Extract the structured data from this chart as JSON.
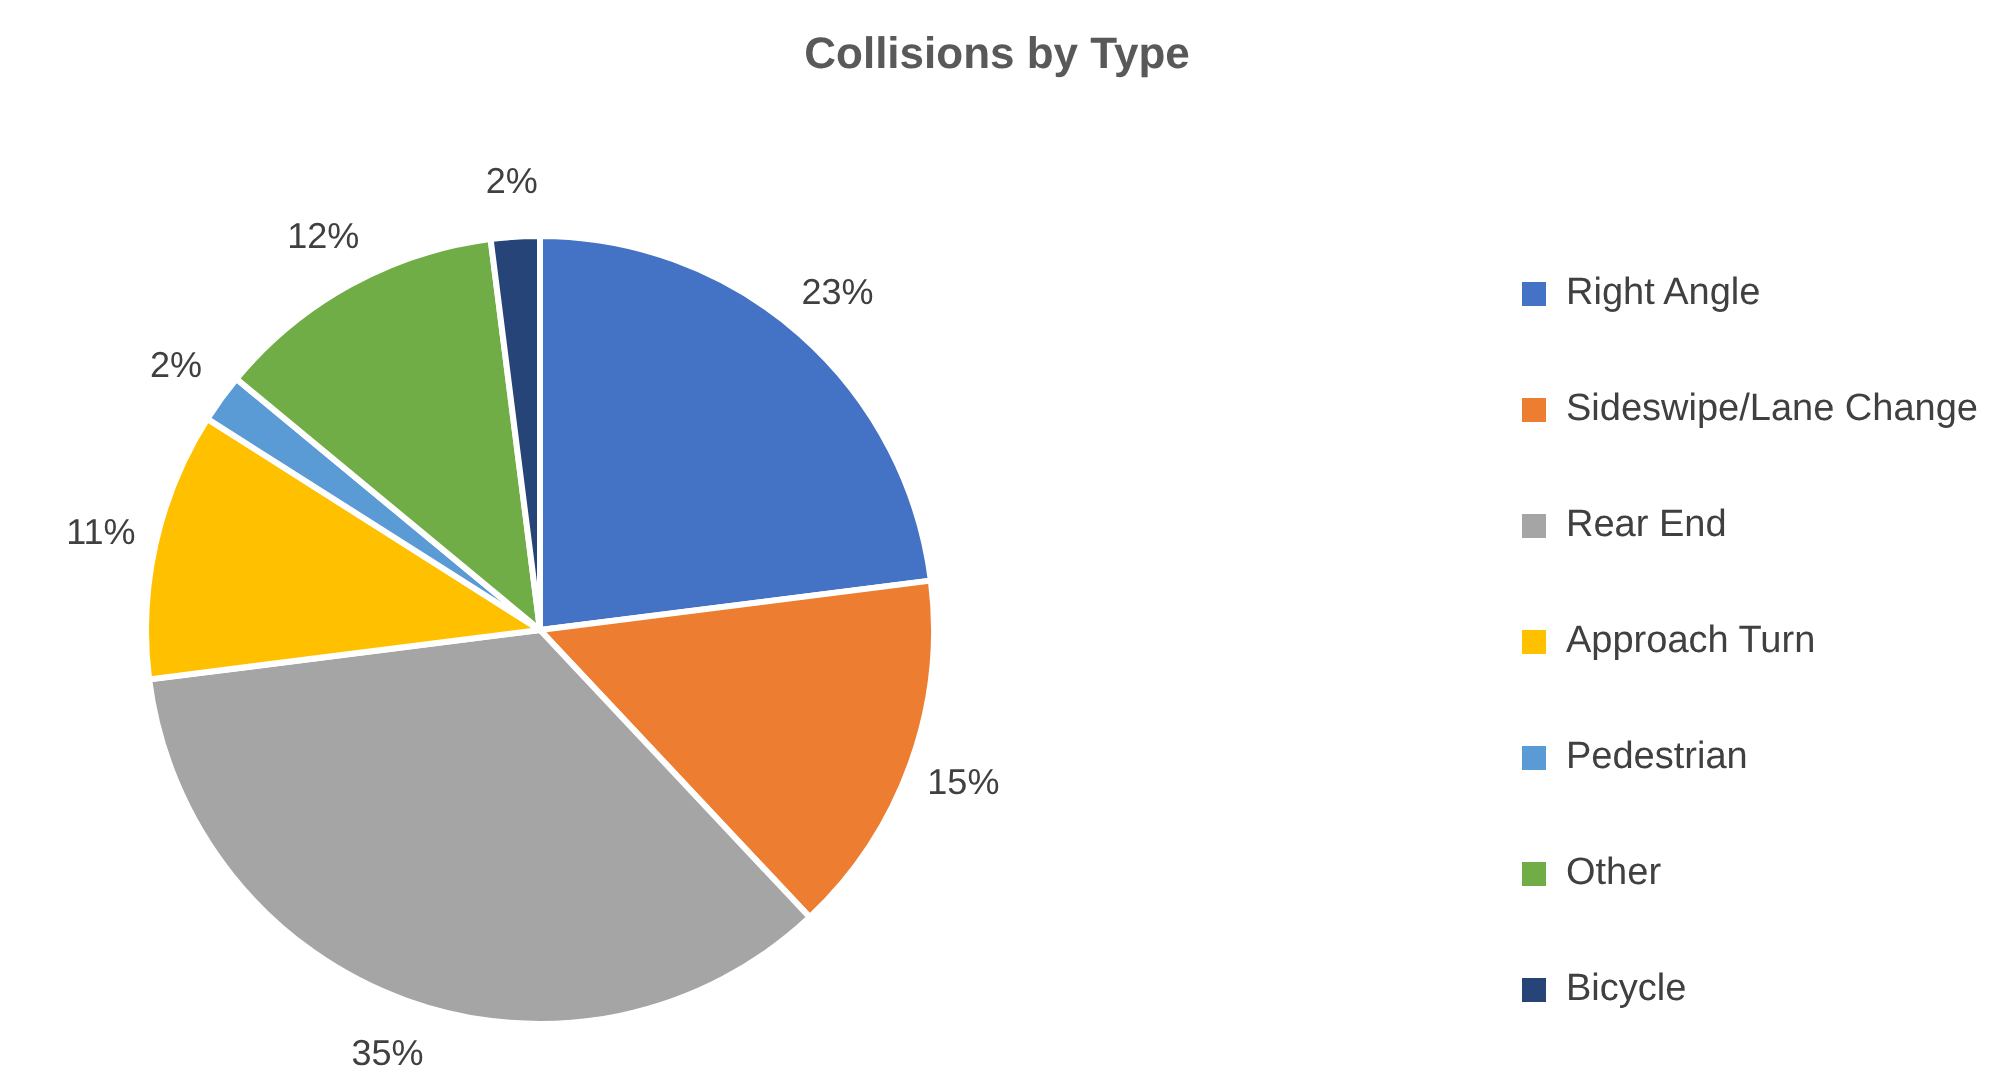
{
  "chart_data": {
    "type": "pie",
    "title": "Collisions by Type",
    "categories": [
      "Right Angle",
      "Sideswipe/Lane Change",
      "Rear End",
      "Approach Turn",
      "Pedestrian",
      "Other",
      "Bicycle"
    ],
    "values": [
      23,
      15,
      35,
      11,
      2,
      12,
      2
    ],
    "value_labels": [
      "23%",
      "15%",
      "35%",
      "11%",
      "2%",
      "12%",
      "2%"
    ],
    "colors": [
      "#4472c4",
      "#ed7d31",
      "#a5a5a5",
      "#ffc000",
      "#5b9bd5",
      "#70ad47",
      "#264478"
    ],
    "legend": "right"
  }
}
